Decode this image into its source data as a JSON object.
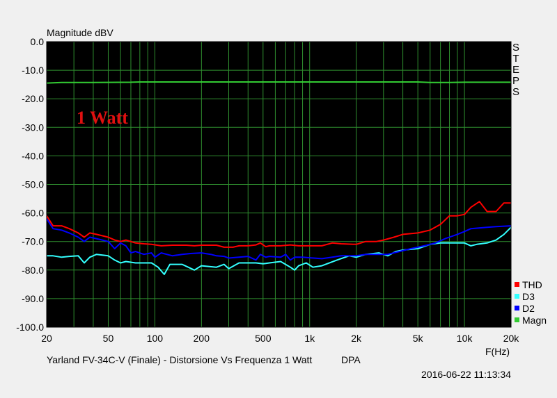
{
  "chart_data": {
    "type": "line",
    "title": "Yarland FV-34C-V (Finale) - Distorsione Vs Frequenza 1 Watt",
    "title_suffix": "DPA",
    "ylabel": "Magnitude dBV",
    "xlabel": "F(Hz)",
    "right_label": "STEPS",
    "timestamp": "2016-06-22 11:13:34",
    "annotation": "1 Watt",
    "xscale": "log",
    "xlim": [
      20,
      20000
    ],
    "ylim": [
      -100,
      0
    ],
    "grid": true,
    "legend_position": "bottom-right",
    "x_ticks": [
      {
        "value": 20,
        "label": "20"
      },
      {
        "value": 50,
        "label": "50"
      },
      {
        "value": 100,
        "label": "100"
      },
      {
        "value": 200,
        "label": "200"
      },
      {
        "value": 500,
        "label": "500"
      },
      {
        "value": 1000,
        "label": "1k"
      },
      {
        "value": 2000,
        "label": "2k"
      },
      {
        "value": 5000,
        "label": "5k"
      },
      {
        "value": 10000,
        "label": "10k"
      },
      {
        "value": 20000,
        "label": "20k"
      }
    ],
    "y_ticks": [
      {
        "value": 0,
        "label": "0.0"
      },
      {
        "value": -10,
        "label": "-10.0"
      },
      {
        "value": -20,
        "label": "-20.0"
      },
      {
        "value": -30,
        "label": "-30.0"
      },
      {
        "value": -40,
        "label": "-40.0"
      },
      {
        "value": -50,
        "label": "-50.0"
      },
      {
        "value": -60,
        "label": "-60.0"
      },
      {
        "value": -70,
        "label": "-70.0"
      },
      {
        "value": -80,
        "label": "-80.0"
      },
      {
        "value": -90,
        "label": "-90.0"
      },
      {
        "value": -100,
        "label": "-100.0"
      }
    ],
    "colors": {
      "plot_bg": "#000000",
      "grid": "#2f8f2f",
      "THD": "#ff0000",
      "D3": "#33ffff",
      "D2": "#0000ff",
      "Magn": "#33cc33",
      "annotation": "#e01010"
    },
    "series": [
      {
        "name": "THD",
        "points": [
          [
            20,
            -61
          ],
          [
            22,
            -64.5
          ],
          [
            25,
            -64.5
          ],
          [
            28,
            -65.5
          ],
          [
            32,
            -67
          ],
          [
            35,
            -68.5
          ],
          [
            38,
            -67
          ],
          [
            42,
            -67.5
          ],
          [
            50,
            -68.5
          ],
          [
            55,
            -69.5
          ],
          [
            60,
            -70
          ],
          [
            65,
            -69.5
          ],
          [
            75,
            -70.5
          ],
          [
            85,
            -70.8
          ],
          [
            95,
            -71
          ],
          [
            110,
            -71.5
          ],
          [
            130,
            -71.3
          ],
          [
            160,
            -71.3
          ],
          [
            180,
            -71.5
          ],
          [
            200,
            -71.3
          ],
          [
            250,
            -71.3
          ],
          [
            280,
            -72
          ],
          [
            320,
            -72
          ],
          [
            350,
            -71.5
          ],
          [
            400,
            -71.5
          ],
          [
            450,
            -71.2
          ],
          [
            480,
            -70.5
          ],
          [
            520,
            -71.8
          ],
          [
            550,
            -71.5
          ],
          [
            650,
            -71.5
          ],
          [
            750,
            -71.2
          ],
          [
            850,
            -71.5
          ],
          [
            1000,
            -71.5
          ],
          [
            1200,
            -71.5
          ],
          [
            1400,
            -70.5
          ],
          [
            1600,
            -70.8
          ],
          [
            2000,
            -71
          ],
          [
            2300,
            -70
          ],
          [
            2700,
            -70
          ],
          [
            3000,
            -69.5
          ],
          [
            3500,
            -68.5
          ],
          [
            4000,
            -67.5
          ],
          [
            5000,
            -67
          ],
          [
            6000,
            -66
          ],
          [
            7000,
            -64
          ],
          [
            8000,
            -61
          ],
          [
            9000,
            -61
          ],
          [
            10000,
            -60.5
          ],
          [
            11000,
            -58
          ],
          [
            12500,
            -56
          ],
          [
            14000,
            -59.5
          ],
          [
            16000,
            -59.5
          ],
          [
            18000,
            -56.5
          ],
          [
            20000,
            -56.5
          ]
        ]
      },
      {
        "name": "D3",
        "points": [
          [
            20,
            -75
          ],
          [
            22,
            -75
          ],
          [
            25,
            -75.5
          ],
          [
            28,
            -75.2
          ],
          [
            32,
            -75
          ],
          [
            35,
            -77.5
          ],
          [
            38,
            -75.5
          ],
          [
            42,
            -74.5
          ],
          [
            50,
            -75
          ],
          [
            55,
            -76.5
          ],
          [
            60,
            -77.5
          ],
          [
            65,
            -77
          ],
          [
            75,
            -77.5
          ],
          [
            85,
            -77.5
          ],
          [
            95,
            -77.5
          ],
          [
            105,
            -79
          ],
          [
            115,
            -81.5
          ],
          [
            125,
            -78
          ],
          [
            150,
            -78
          ],
          [
            180,
            -80
          ],
          [
            200,
            -78.5
          ],
          [
            250,
            -79
          ],
          [
            280,
            -78
          ],
          [
            300,
            -79.5
          ],
          [
            350,
            -77.5
          ],
          [
            400,
            -77.5
          ],
          [
            450,
            -77.5
          ],
          [
            500,
            -77.8
          ],
          [
            550,
            -77.5
          ],
          [
            650,
            -77
          ],
          [
            750,
            -79
          ],
          [
            800,
            -80
          ],
          [
            850,
            -78.5
          ],
          [
            950,
            -77.5
          ],
          [
            1050,
            -79
          ],
          [
            1200,
            -78.5
          ],
          [
            1500,
            -76.5
          ],
          [
            1800,
            -75
          ],
          [
            2000,
            -75.5
          ],
          [
            2300,
            -74.5
          ],
          [
            2800,
            -74
          ],
          [
            3200,
            -75
          ],
          [
            3600,
            -73.5
          ],
          [
            4000,
            -73
          ],
          [
            5000,
            -72.5
          ],
          [
            6000,
            -71
          ],
          [
            7000,
            -70.5
          ],
          [
            8000,
            -70.5
          ],
          [
            9000,
            -70.5
          ],
          [
            10000,
            -70.5
          ],
          [
            11000,
            -71.5
          ],
          [
            12000,
            -71
          ],
          [
            14000,
            -70.5
          ],
          [
            16000,
            -69.5
          ],
          [
            18000,
            -67.5
          ],
          [
            20000,
            -65
          ]
        ]
      },
      {
        "name": "D2",
        "points": [
          [
            20,
            -62
          ],
          [
            22,
            -65.5
          ],
          [
            25,
            -66
          ],
          [
            28,
            -67
          ],
          [
            32,
            -68.5
          ],
          [
            35,
            -70
          ],
          [
            38,
            -68.5
          ],
          [
            42,
            -69
          ],
          [
            50,
            -70
          ],
          [
            55,
            -72.5
          ],
          [
            60,
            -70.5
          ],
          [
            65,
            -71.5
          ],
          [
            70,
            -74
          ],
          [
            75,
            -73.5
          ],
          [
            85,
            -74.5
          ],
          [
            95,
            -74
          ],
          [
            100,
            -75.5
          ],
          [
            110,
            -74
          ],
          [
            130,
            -75
          ],
          [
            150,
            -74.5
          ],
          [
            170,
            -74.2
          ],
          [
            200,
            -74
          ],
          [
            230,
            -74.5
          ],
          [
            250,
            -75
          ],
          [
            280,
            -75.2
          ],
          [
            300,
            -75.8
          ],
          [
            350,
            -75.5
          ],
          [
            400,
            -75.2
          ],
          [
            450,
            -76.5
          ],
          [
            480,
            -74.5
          ],
          [
            520,
            -75.5
          ],
          [
            550,
            -75.2
          ],
          [
            650,
            -75.5
          ],
          [
            700,
            -74.5
          ],
          [
            750,
            -76.5
          ],
          [
            800,
            -75.5
          ],
          [
            900,
            -75.5
          ],
          [
            1000,
            -75.7
          ],
          [
            1200,
            -76
          ],
          [
            1400,
            -75.5
          ],
          [
            1600,
            -75
          ],
          [
            2000,
            -75
          ],
          [
            2300,
            -74.5
          ],
          [
            2800,
            -74.5
          ],
          [
            3200,
            -74.5
          ],
          [
            3800,
            -73.5
          ],
          [
            4500,
            -72.5
          ],
          [
            5500,
            -71.5
          ],
          [
            6500,
            -70.5
          ],
          [
            7500,
            -69
          ],
          [
            9000,
            -67.5
          ],
          [
            10000,
            -66.5
          ],
          [
            11000,
            -65.5
          ],
          [
            14000,
            -65
          ],
          [
            16000,
            -64.8
          ],
          [
            20000,
            -64.5
          ]
        ]
      },
      {
        "name": "Magn",
        "points": [
          [
            20,
            -14.5
          ],
          [
            25,
            -14.3
          ],
          [
            40,
            -14.3
          ],
          [
            70,
            -14.2
          ],
          [
            80,
            -14.1
          ],
          [
            200,
            -14.1
          ],
          [
            500,
            -14.1
          ],
          [
            1000,
            -14.1
          ],
          [
            2000,
            -14.1
          ],
          [
            5000,
            -14.1
          ],
          [
            6000,
            -14.3
          ],
          [
            8000,
            -14.3
          ],
          [
            10000,
            -14.2
          ],
          [
            20000,
            -14.2
          ]
        ]
      }
    ]
  }
}
